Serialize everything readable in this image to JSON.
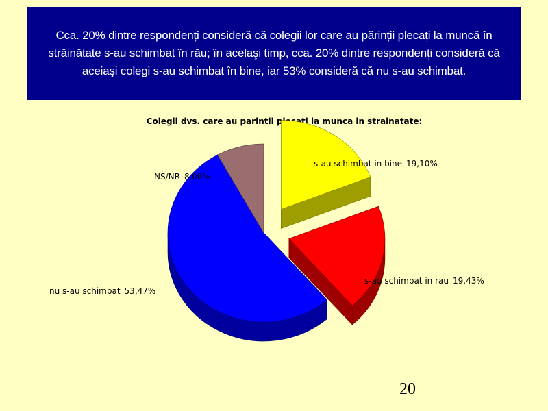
{
  "slide": {
    "headline": "Cca. 20% dintre respondenți consideră că colegii lor care au părinții plecați la muncă în străinătate s-au schimbat în rău; în acelaşi timp, cca. 20% dintre respondenți consideră că aceiaşi colegi s-au schimbat în bine, iar 53% consideră că nu s-au schimbat.",
    "page_number": "20"
  },
  "colors": {
    "background": "#ffffc4",
    "banner": "#00008c"
  },
  "chart_data": {
    "type": "pie",
    "style": "3d-exploded",
    "title": "Colegii dvs. care au parintii plecati la munca in strainatate:",
    "slices": [
      {
        "label": "s-au schimbat in bine",
        "value": 19.1,
        "value_label": "19,10%",
        "color": "#ffff00"
      },
      {
        "label": "s-au schimbat in rau",
        "value": 19.43,
        "value_label": "19,43%",
        "color": "#ff0000"
      },
      {
        "label": "nu s-au schimbat",
        "value": 53.47,
        "value_label": "53,47%",
        "color": "#0000ff"
      },
      {
        "label": "NS/NR",
        "value": 8.0,
        "value_label": "8,00%",
        "color": "#9a6e6e"
      }
    ]
  }
}
